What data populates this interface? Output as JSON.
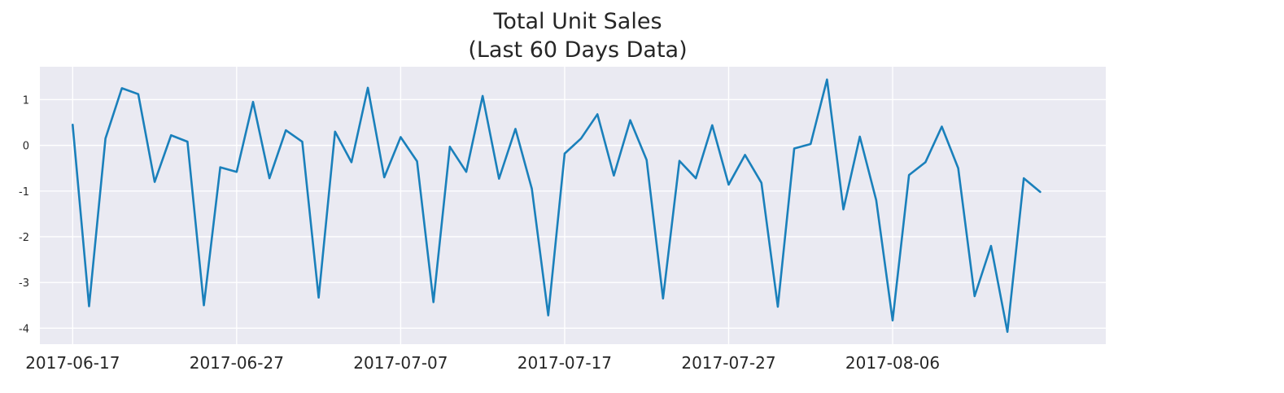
{
  "chart_data": {
    "type": "line",
    "title": "Total Unit Sales",
    "subtitle": "(Last 60 Days Data)",
    "xlabel": "",
    "ylabel": "",
    "x_type": "date",
    "x_start_date": "2017-06-17",
    "x_ticks": [
      "2017-06-17",
      "2017-06-27",
      "2017-07-07",
      "2017-07-17",
      "2017-07-27",
      "2017-08-06"
    ],
    "y_ticks": [
      1,
      0,
      -1,
      -2,
      -3,
      -4
    ],
    "xlim": [
      "2017-06-15",
      "2017-08-19"
    ],
    "ylim": [
      -4.35,
      1.72
    ],
    "grid": true,
    "legend": "none",
    "colors": {
      "background": "#eaeaf2",
      "grid": "#ffffff",
      "line": "#1a80bb",
      "text": "#262626"
    },
    "series": [
      {
        "values": [
          0.45,
          -3.52,
          0.15,
          1.25,
          1.12,
          -0.8,
          0.22,
          0.08,
          -3.5,
          -0.48,
          -0.58,
          0.95,
          -0.72,
          0.33,
          0.08,
          -3.33,
          0.3,
          -0.37,
          1.26,
          -0.7,
          0.18,
          -0.35,
          -3.43,
          -0.03,
          -0.58,
          1.08,
          -0.73,
          0.36,
          -0.95,
          -3.72,
          -0.18,
          0.15,
          0.68,
          -0.66,
          0.55,
          -0.32,
          -3.35,
          -0.34,
          -0.72,
          0.44,
          -0.86,
          -0.21,
          -0.82,
          -3.53,
          -0.07,
          0.03,
          1.44,
          -1.4,
          0.19,
          -1.2,
          -3.83,
          -0.65,
          -0.37,
          0.41,
          -0.5,
          -3.3,
          -2.2,
          -4.08,
          -0.72,
          -1.02
        ]
      }
    ]
  }
}
